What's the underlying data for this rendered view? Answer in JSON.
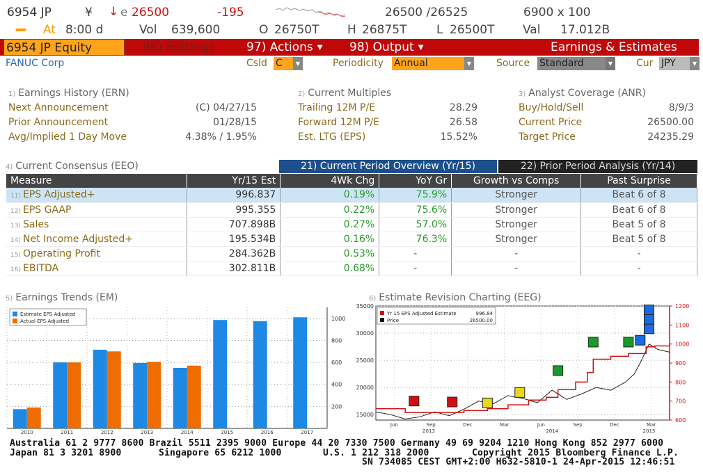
{
  "ticker": {
    "symbol": "6954 JP",
    "currency_sym": "¥",
    "direction": "↓",
    "price_prefix": "e",
    "price": "26500",
    "change": "-195",
    "bid_ask": "26500 /26525",
    "size": "6900 x 100",
    "status_dots": "▪▪▪▪",
    "at_label": "At",
    "time": "8:00 d",
    "vol_label": "Vol",
    "vol": "639,600",
    "o_label": "O",
    "open": "26750T",
    "h_label": "H",
    "high": "26875T",
    "l_label": "L",
    "low": "26500T",
    "val_label": "Val",
    "value": "17.012B"
  },
  "command_bar": {
    "security": "6954 JP Equity",
    "settings": "96) Settings",
    "actions": "97) Actions",
    "output": "98) Output",
    "title": "Earnings & Estimates"
  },
  "company": {
    "name": "FANUC Corp",
    "csld_label": "Csld",
    "csld_value": "C",
    "periodicity_label": "Periodicity",
    "periodicity_value": "Annual",
    "source_label": "Source",
    "source_value": "Standard",
    "cur_label": "Cur",
    "cur_value": "JPY"
  },
  "earnings_history": {
    "num": "1)",
    "title": "Earnings History (ERN)",
    "rows": [
      {
        "label": "Next Announcement",
        "value": "(C)  04/27/15"
      },
      {
        "label": "Prior Announcement",
        "value": "01/28/15"
      },
      {
        "label": "Avg/Implied 1 Day Move",
        "value": "4.38% / 1.95%"
      }
    ]
  },
  "multiples": {
    "num": "2)",
    "title": "Current Multiples",
    "rows": [
      {
        "label": "Trailing 12M P/E",
        "value": "28.29"
      },
      {
        "label": "Forward 12M P/E",
        "value": "26.58"
      },
      {
        "label": "Est. LTG (EPS)",
        "value": "15.52%"
      }
    ]
  },
  "analyst": {
    "num": "3)",
    "title": "Analyst Coverage (ANR)",
    "rows": [
      {
        "label": "Buy/Hold/Sell",
        "value": "8/9/3"
      },
      {
        "label": "Current Price",
        "value": "26500.00"
      },
      {
        "label": "Target Price",
        "value": "24235.29"
      }
    ]
  },
  "consensus": {
    "num": "4)",
    "title": "Current Consensus (EEO)",
    "tab1": "21) Current Period Overview (Yr/15)",
    "tab2": "22) Prior Period Analysis (Yr/14)",
    "headers": [
      "Measure",
      "Yr/15 Est",
      "4Wk Chg",
      "YoY Gr",
      "Growth vs Comps",
      "Past Surprise"
    ],
    "rows": [
      {
        "n": "11)",
        "measure": "EPS Adjusted+",
        "est": "996.837",
        "chg": "0.19%",
        "yoy": "75.9%",
        "comps": "Stronger",
        "surprise": "Beat 6 of 8"
      },
      {
        "n": "12)",
        "measure": "EPS GAAP",
        "est": "995.355",
        "chg": "0.22%",
        "yoy": "75.6%",
        "comps": "Stronger",
        "surprise": "Beat 6 of 8"
      },
      {
        "n": "13)",
        "measure": "Sales",
        "est": "707.898B",
        "chg": "0.27%",
        "yoy": "57.0%",
        "comps": "Stronger",
        "surprise": "Beat 5 of 8"
      },
      {
        "n": "14)",
        "measure": "Net Income Adjusted+",
        "est": "195.534B",
        "chg": "0.16%",
        "yoy": "76.3%",
        "comps": "Stronger",
        "surprise": "Beat 5 of 8"
      },
      {
        "n": "15)",
        "measure": "Operating Profit",
        "est": "284.362B",
        "chg": "0.53%",
        "yoy": "-",
        "comps": "-",
        "surprise": "-"
      },
      {
        "n": "16)",
        "measure": "EBITDA",
        "est": "302.811B",
        "chg": "0.68%",
        "yoy": "-",
        "comps": "-",
        "surprise": "-"
      }
    ]
  },
  "trends": {
    "num": "5)",
    "title": "Earnings Trends (EM)",
    "colors": {
      "estimate": "#1e88e5",
      "actual": "#ef6c00"
    }
  },
  "revision": {
    "num": "6)",
    "title": "Estimate Revision Charting (EEG)",
    "legend": [
      {
        "name": "Yr 15 EPS Adjusted Estimate",
        "value": "996.84",
        "color": "#d01010"
      },
      {
        "name": "Price",
        "value": "26500.00",
        "color": "#111111"
      }
    ],
    "months": [
      "Jun",
      "Sep",
      "Dec",
      "Mar",
      "Jun",
      "Sep",
      "Dec",
      "Mar"
    ],
    "years": [
      "2013",
      "2014",
      "2015"
    ],
    "left_ticks": [
      "35000",
      "30000",
      "25000",
      "20000",
      "15000"
    ],
    "right_ticks": [
      "1200",
      "1100",
      "1000",
      "900",
      "800",
      "700",
      "600"
    ]
  },
  "chart_data": [
    {
      "type": "bar",
      "title": "Earnings Trends (EM)",
      "categories": [
        "2010",
        "2011",
        "2012",
        "2013",
        "2014",
        "2015",
        "2016",
        "2017"
      ],
      "series": [
        {
          "name": "Estimate EPS Adjusted",
          "values": [
            175,
            600,
            715,
            595,
            550,
            985,
            975,
            1010
          ]
        },
        {
          "name": "Actual EPS Adjusted",
          "values": [
            190,
            600,
            700,
            605,
            570,
            null,
            null,
            null
          ]
        }
      ],
      "ylim": [
        0,
        1100
      ],
      "yticks": [
        200,
        400,
        600,
        800,
        1000
      ],
      "legend": "top-left"
    },
    {
      "type": "line",
      "title": "Estimate Revision Charting (EEG)",
      "series": [
        {
          "name": "Price",
          "axis": "left",
          "points": [
            [
              0,
              15500
            ],
            [
              0.05,
              15000
            ],
            [
              0.1,
              14200
            ],
            [
              0.15,
              14600
            ],
            [
              0.2,
              15500
            ],
            [
              0.25,
              14800
            ],
            [
              0.3,
              16000
            ],
            [
              0.35,
              17500
            ],
            [
              0.4,
              17000
            ],
            [
              0.45,
              18500
            ],
            [
              0.5,
              18000
            ],
            [
              0.55,
              17200
            ],
            [
              0.6,
              19500
            ],
            [
              0.65,
              17800
            ],
            [
              0.7,
              18800
            ],
            [
              0.75,
              20000
            ],
            [
              0.8,
              19500
            ],
            [
              0.85,
              21000
            ],
            [
              0.88,
              22500
            ],
            [
              0.9,
              24500
            ],
            [
              0.93,
              28000
            ],
            [
              0.96,
              27000
            ],
            [
              1,
              26500
            ]
          ]
        },
        {
          "name": "Yr 15 EPS Adjusted Estimate",
          "axis": "right",
          "points": [
            [
              0,
              660
            ],
            [
              0.1,
              640
            ],
            [
              0.2,
              640
            ],
            [
              0.3,
              650
            ],
            [
              0.38,
              660
            ],
            [
              0.45,
              680
            ],
            [
              0.52,
              705
            ],
            [
              0.58,
              720
            ],
            [
              0.62,
              760
            ],
            [
              0.68,
              800
            ],
            [
              0.72,
              850
            ],
            [
              0.74,
              920
            ],
            [
              0.8,
              935
            ],
            [
              0.86,
              950
            ],
            [
              0.92,
              985
            ],
            [
              0.95,
              990
            ],
            [
              1,
              997
            ]
          ]
        }
      ],
      "ylim_left": [
        14000,
        35000
      ],
      "ylim_right": [
        600,
        1200
      ]
    }
  ],
  "footer": {
    "line1": "Australia 61 2 9777 8600 Brazil 5511 2395 9000 Europe 44 20 7330 7500 Germany 49 69 9204 1210 Hong Kong 852 2977 6000",
    "line2a": "Japan 81 3 3201 8900",
    "line2b": "Singapore 65 6212 1000",
    "line2c": "U.S. 1 212 318 2000",
    "line2d": "Copyright 2015 Bloomberg Finance L.P.",
    "line3": "SN 734085 CEST GMT+2:00 H632-5810-1 24-Apr-2015 12:46:51"
  }
}
